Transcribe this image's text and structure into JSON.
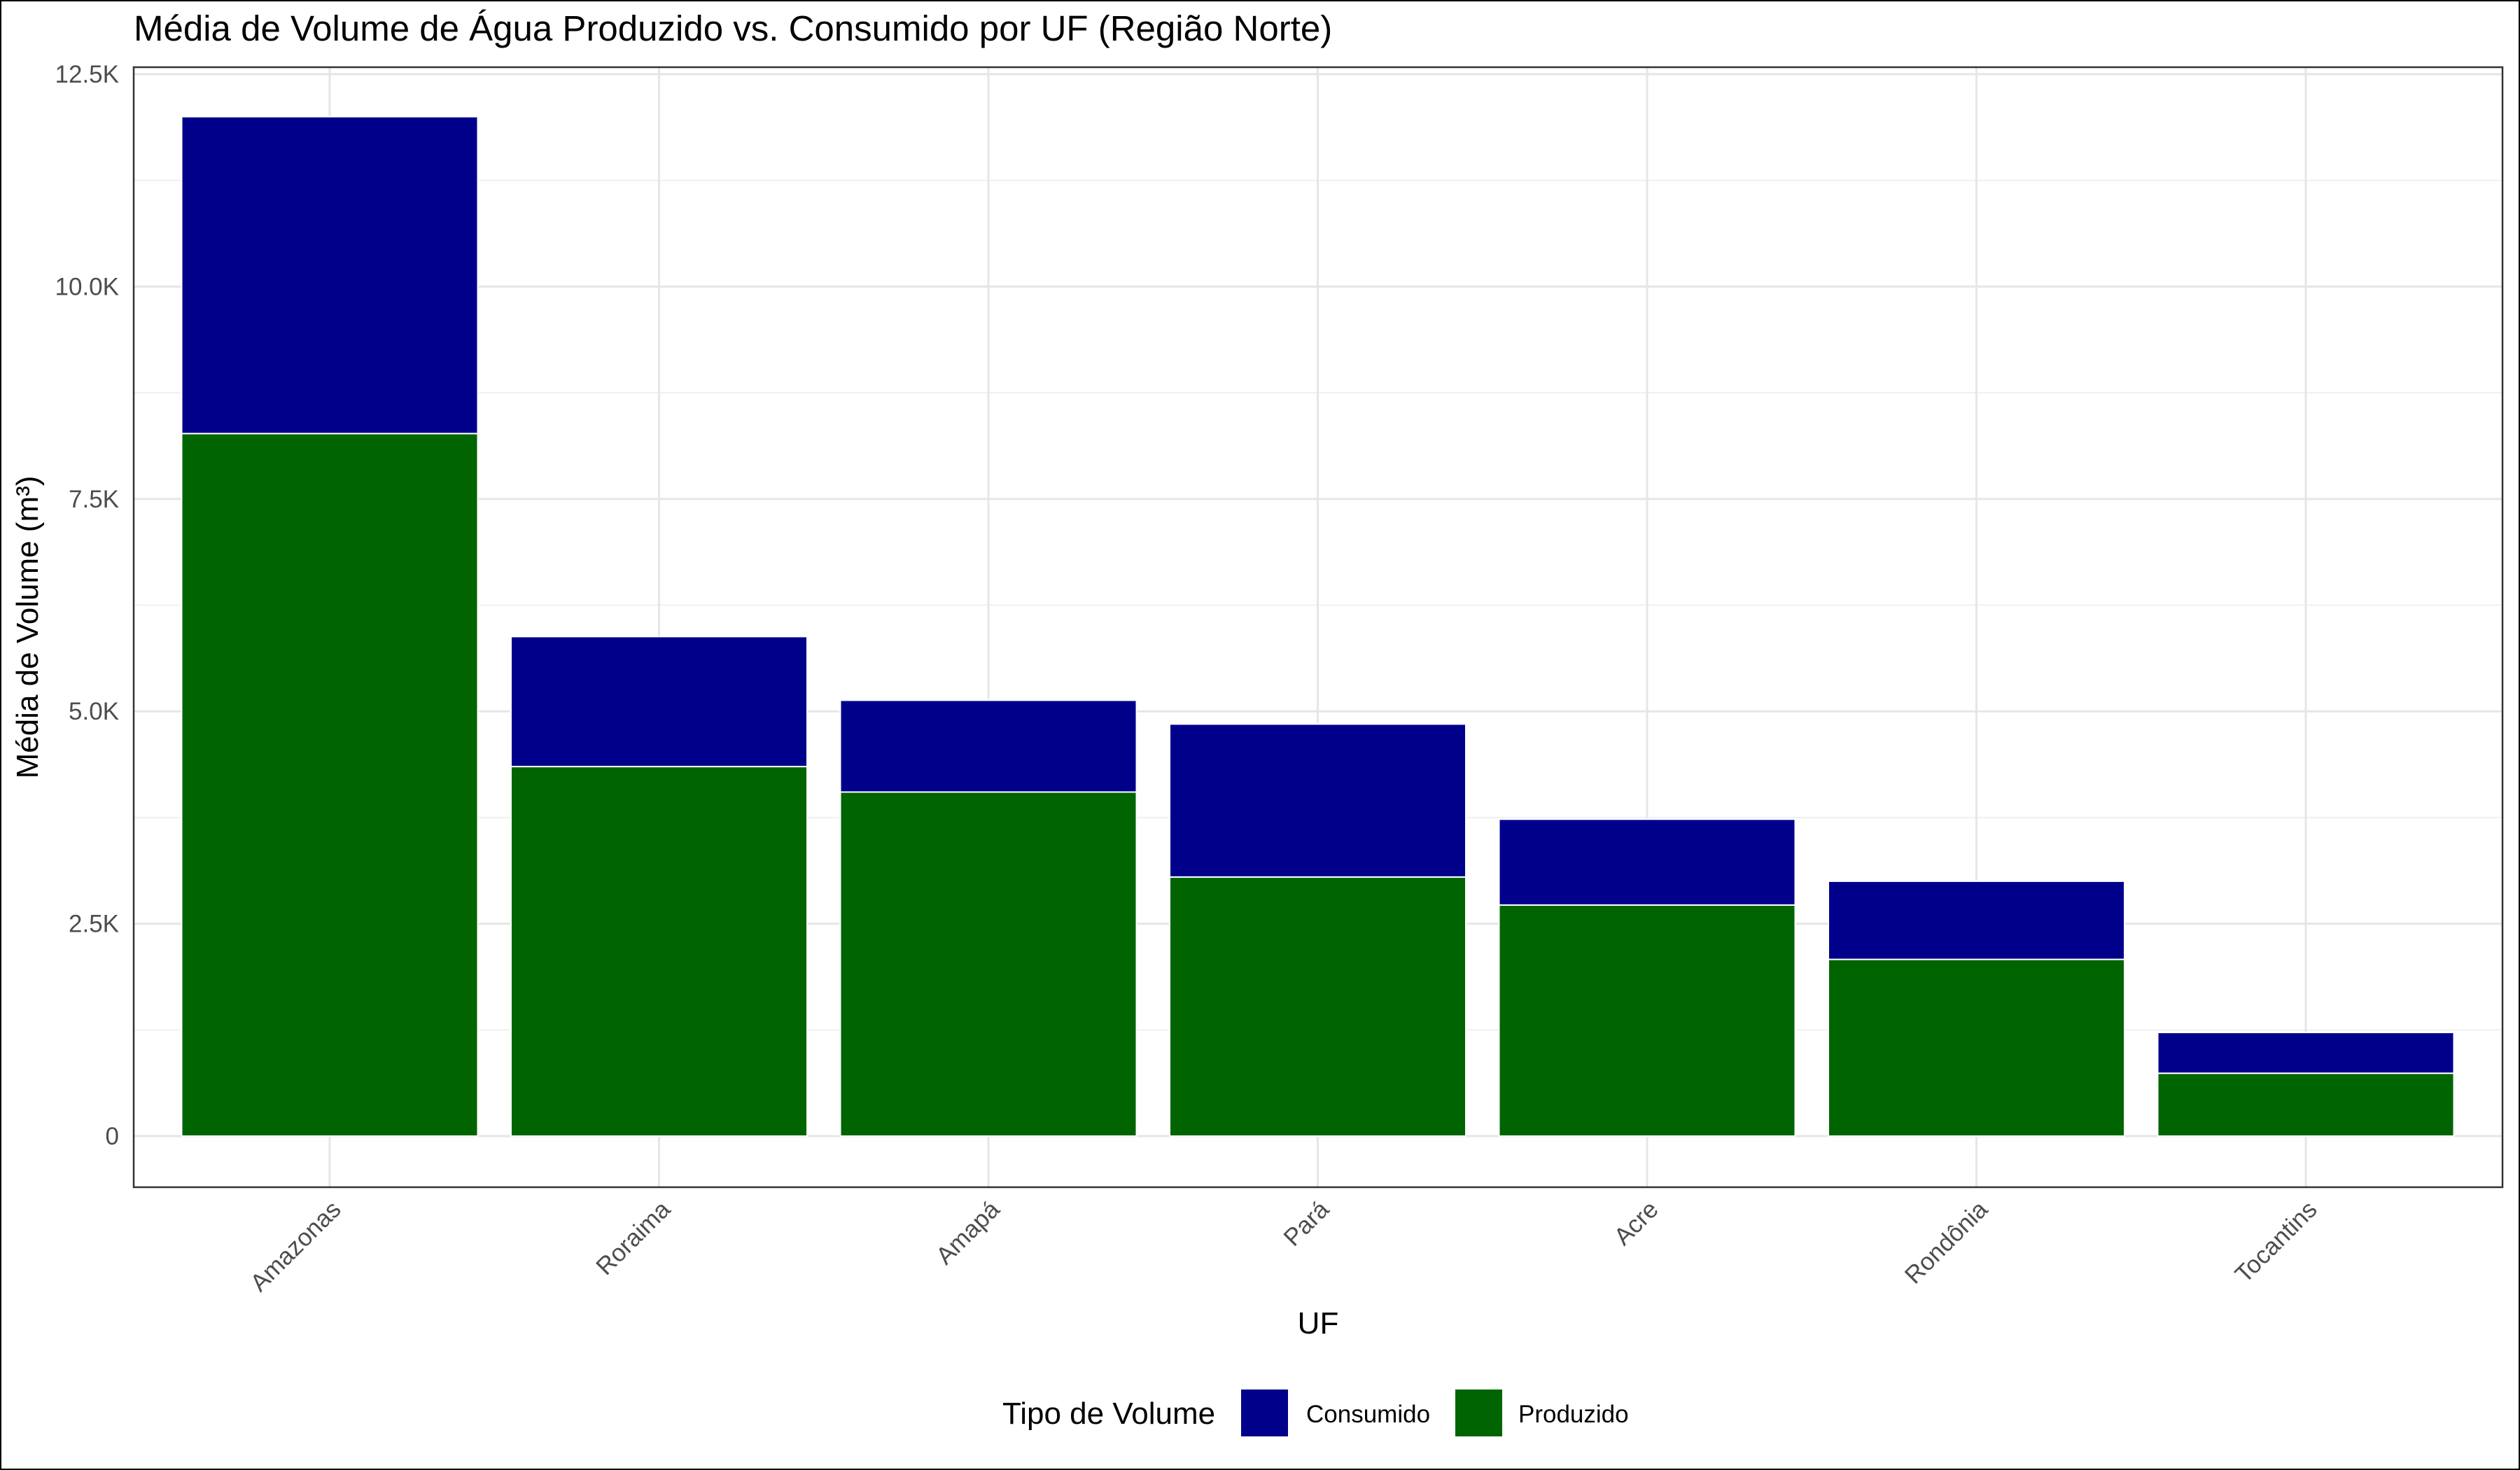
{
  "chart_data": {
    "type": "bar",
    "stacked": true,
    "title": "Média de Volume de Água Produzido vs. Consumido por UF (Região Norte)",
    "xlabel": "UF",
    "ylabel": "Média de Volume (m³)",
    "categories": [
      "Amazonas",
      "Roraima",
      "Amapá",
      "Pará",
      "Acre",
      "Rondônia",
      "Tocantins"
    ],
    "series": [
      {
        "name": "Produzido",
        "color": "#006400",
        "values": [
          8270,
          4350,
          4050,
          3050,
          2720,
          2080,
          740
        ]
      },
      {
        "name": "Consumido",
        "color": "#00008B",
        "values": [
          3730,
          1530,
          1080,
          1800,
          1010,
          920,
          480
        ]
      }
    ],
    "ylim": [
      0,
      12500
    ],
    "yticks": [
      0,
      2500,
      5000,
      7500,
      10000,
      12500
    ],
    "ytick_labels": [
      "0",
      "2.5K",
      "5.0K",
      "7.5K",
      "10.0K",
      "12.5K"
    ],
    "grid": true,
    "legend": {
      "title": "Tipo de Volume",
      "position": "bottom",
      "items": [
        {
          "label": "Consumido",
          "color": "#00008B"
        },
        {
          "label": "Produzido",
          "color": "#006400"
        }
      ]
    }
  }
}
